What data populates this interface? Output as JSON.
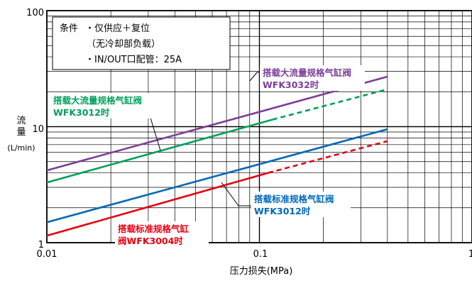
{
  "chart_data": {
    "type": "line",
    "xlabel": "压力损失(MPa)",
    "ylabel": [
      "流",
      "量",
      "(L/min)"
    ],
    "xscale": "log",
    "yscale": "log",
    "xlim": [
      0.01,
      1
    ],
    "ylim": [
      1,
      100
    ],
    "x_tick_labels": [
      "0.01",
      "0.1",
      "1"
    ],
    "y_tick_labels": [
      "1",
      "10",
      "100"
    ],
    "grid": true,
    "conditions": [
      "条件",
      "・仅供应＋复位",
      "（无冷却部负载）",
      "・IN/OUT口配管：25A"
    ],
    "series": [
      {
        "name": [
          "搭载大流量规格气缸阀",
          "WFK3032时"
        ],
        "color": "#7b3f98",
        "solid": [
          [
            0.01,
            4.2
          ],
          [
            0.4,
            27
          ]
        ],
        "dashed": []
      },
      {
        "name": [
          "搭载大流量规格气缸阀",
          "WFK3012时"
        ],
        "color": "#00a05a",
        "solid": [
          [
            0.01,
            3.3
          ],
          [
            0.115,
            11.5
          ]
        ],
        "dashed": [
          [
            0.115,
            11.5
          ],
          [
            0.4,
            21
          ]
        ]
      },
      {
        "name": [
          "搭载标准规格气缸阀",
          "WFK3012时"
        ],
        "color": "#0068b7",
        "solid": [
          [
            0.01,
            1.5
          ],
          [
            0.4,
            9.5
          ]
        ],
        "dashed": []
      },
      {
        "name": [
          "搭载标准规格气缸",
          "阀WFK3004时"
        ],
        "color": "#e60012",
        "solid": [
          [
            0.01,
            1.15
          ],
          [
            0.11,
            4.0
          ]
        ],
        "dashed": [
          [
            0.11,
            4.0
          ],
          [
            0.4,
            7.5
          ]
        ]
      }
    ]
  }
}
